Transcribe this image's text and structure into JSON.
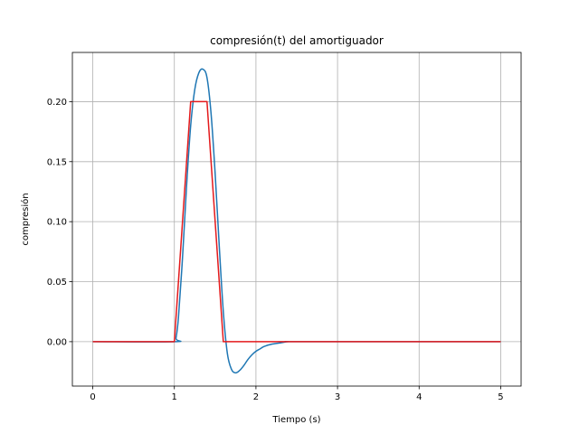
{
  "chart_data": {
    "type": "line",
    "title": "compresión(t) del amortiguador",
    "xlabel": "Tiempo (s)",
    "ylabel": "compresión",
    "xlim": [
      -0.25,
      5.25
    ],
    "ylim": [
      -0.037,
      0.241
    ],
    "xticks": [
      0,
      1,
      2,
      3,
      4,
      5
    ],
    "xtick_labels": [
      "0",
      "1",
      "2",
      "3",
      "4",
      "5"
    ],
    "yticks": [
      0.0,
      0.05,
      0.1,
      0.15,
      0.2
    ],
    "ytick_labels": [
      "0.00",
      "0.05",
      "0.10",
      "0.15",
      "0.20"
    ],
    "grid": true,
    "series": [
      {
        "color": "#1f77b4",
        "x": [
          0,
          1.0,
          1.02,
          1.05,
          1.1,
          1.15,
          1.2,
          1.25,
          1.3,
          1.35,
          1.4,
          1.45,
          1.5,
          1.55,
          1.6,
          1.65,
          1.7,
          1.75,
          1.8,
          1.85,
          1.9,
          1.95,
          2.0,
          2.05,
          2.1,
          2.2,
          2.3,
          2.4,
          2.6,
          5.0
        ],
        "y": [
          0,
          0,
          0.003,
          0.02,
          0.07,
          0.13,
          0.18,
          0.21,
          0.224,
          0.227,
          0.22,
          0.19,
          0.14,
          0.08,
          0.025,
          -0.01,
          -0.023,
          -0.026,
          -0.024,
          -0.02,
          -0.015,
          -0.011,
          -0.008,
          -0.006,
          -0.004,
          -0.002,
          -0.001,
          0,
          0,
          0
        ]
      },
      {
        "color": "#e41a1c",
        "x": [
          0,
          1.0,
          1.2,
          1.4,
          1.6,
          5.0
        ],
        "y": [
          0,
          0,
          0.2,
          0.2,
          0,
          0
        ]
      }
    ]
  }
}
